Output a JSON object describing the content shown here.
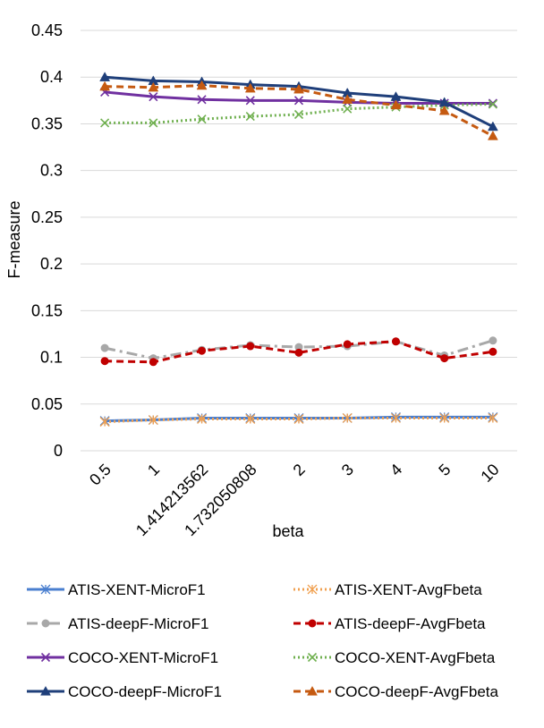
{
  "chart_data": {
    "type": "line",
    "xlabel": "beta",
    "ylabel": "F-measure",
    "categories": [
      "0.5",
      "1",
      "1.414213562",
      "1.732050808",
      "2",
      "3",
      "4",
      "5",
      "10"
    ],
    "ylim": [
      0,
      0.45
    ],
    "yticks": [
      "0",
      "0.05",
      "0.1",
      "0.15",
      "0.2",
      "0.25",
      "0.3",
      "0.35",
      "0.4",
      "0.45"
    ],
    "grid": "horizontal",
    "legend_position": "bottom",
    "series": [
      {
        "name": "ATIS-XENT-MicroF1",
        "color": "#4a7fcf",
        "dash": "solid",
        "marker": "asterisk",
        "values": [
          0.032,
          0.033,
          0.035,
          0.035,
          0.035,
          0.035,
          0.036,
          0.036,
          0.036
        ]
      },
      {
        "name": "ATIS-XENT-AvgFbeta",
        "color": "#f0a050",
        "dash": "dotted",
        "marker": "asterisk",
        "values": [
          0.031,
          0.033,
          0.034,
          0.034,
          0.034,
          0.035,
          0.035,
          0.035,
          0.035
        ]
      },
      {
        "name": "ATIS-deepF-MicroF1",
        "color": "#a8a8a8",
        "dash": "dashdot",
        "marker": "circle",
        "values": [
          0.11,
          0.099,
          0.108,
          0.113,
          0.111,
          0.112,
          0.117,
          0.102,
          0.118
        ]
      },
      {
        "name": "ATIS-deepF-AvgFbeta",
        "color": "#c00000",
        "dash": "dashed",
        "marker": "circle",
        "values": [
          0.096,
          0.095,
          0.107,
          0.112,
          0.105,
          0.114,
          0.117,
          0.099,
          0.106
        ]
      },
      {
        "name": "COCO-XENT-MicroF1",
        "color": "#7030a0",
        "dash": "solid",
        "marker": "x",
        "values": [
          0.384,
          0.379,
          0.376,
          0.375,
          0.375,
          0.373,
          0.372,
          0.372,
          0.372
        ]
      },
      {
        "name": "COCO-XENT-AvgFbeta",
        "color": "#70b050",
        "dash": "dotted",
        "marker": "x",
        "values": [
          0.351,
          0.351,
          0.355,
          0.358,
          0.36,
          0.366,
          0.368,
          0.37,
          0.371
        ]
      },
      {
        "name": "COCO-deepF-MicroF1",
        "color": "#1f3f7a",
        "dash": "solid",
        "marker": "triangle",
        "values": [
          0.4,
          0.396,
          0.395,
          0.392,
          0.39,
          0.383,
          0.379,
          0.373,
          0.347
        ]
      },
      {
        "name": "COCO-deepF-AvgFbeta",
        "color": "#c55a11",
        "dash": "dashed",
        "marker": "triangle",
        "values": [
          0.39,
          0.389,
          0.391,
          0.388,
          0.387,
          0.376,
          0.37,
          0.364,
          0.337
        ]
      }
    ]
  }
}
